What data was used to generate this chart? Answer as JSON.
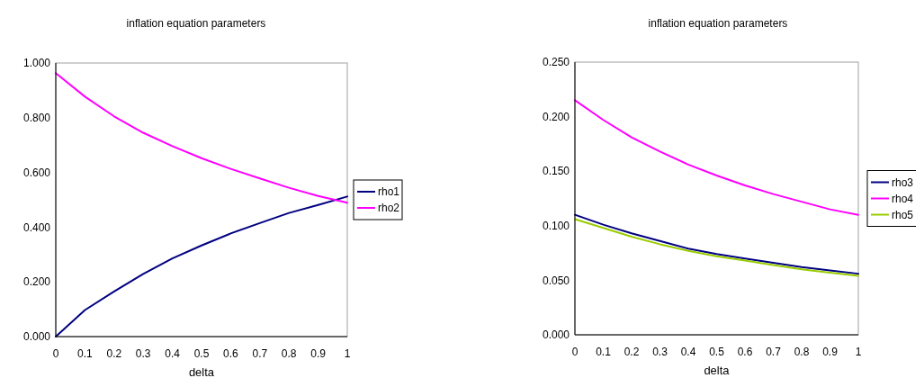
{
  "chart_data": [
    {
      "type": "line",
      "title": "inflation equation parameters",
      "xlabel": "delta",
      "x": [
        0,
        0.1,
        0.2,
        0.3,
        0.4,
        0.5,
        0.6,
        0.7,
        0.8,
        0.9,
        1
      ],
      "xlim": [
        0,
        1
      ],
      "xticks": [
        0,
        0.1,
        0.2,
        0.3,
        0.4,
        0.5,
        0.6,
        0.7,
        0.8,
        0.9,
        1
      ],
      "ylim": [
        0,
        1
      ],
      "yticks": [
        {
          "value": 0,
          "label": "0.000"
        },
        {
          "value": 0.2,
          "label": "0.200"
        },
        {
          "value": 0.4,
          "label": "0.400"
        },
        {
          "value": 0.6,
          "label": "0.600"
        },
        {
          "value": 0.8,
          "label": "0.800"
        },
        {
          "value": 1,
          "label": "1.000"
        }
      ],
      "grid": false,
      "legend": "right",
      "marker": "none",
      "series": [
        {
          "name": "rho1",
          "color": "#000080",
          "values": [
            0,
            0.097,
            0.165,
            0.229,
            0.286,
            0.333,
            0.377,
            0.415,
            0.452,
            0.481,
            0.512
          ]
        },
        {
          "name": "rho2",
          "color": "#ff00ff",
          "values": [
            0.963,
            0.877,
            0.805,
            0.745,
            0.696,
            0.652,
            0.613,
            0.578,
            0.544,
            0.514,
            0.489
          ]
        }
      ]
    },
    {
      "type": "line",
      "title": "inflation equation parameters",
      "xlabel": "delta",
      "x": [
        0,
        0.1,
        0.2,
        0.3,
        0.4,
        0.5,
        0.6,
        0.7,
        0.8,
        0.9,
        1
      ],
      "xlim": [
        0,
        1
      ],
      "xticks": [
        0,
        0.1,
        0.2,
        0.3,
        0.4,
        0.5,
        0.6,
        0.7,
        0.8,
        0.9,
        1
      ],
      "ylim": [
        0,
        0.25
      ],
      "yticks": [
        {
          "value": 0,
          "label": "0.000"
        },
        {
          "value": 0.05,
          "label": "0.050"
        },
        {
          "value": 0.1,
          "label": "0.100"
        },
        {
          "value": 0.15,
          "label": "0.150"
        },
        {
          "value": 0.2,
          "label": "0.200"
        },
        {
          "value": 0.25,
          "label": "0.250"
        }
      ],
      "grid": false,
      "legend": "right",
      "marker": "none",
      "series": [
        {
          "name": "rho3",
          "color": "#000080",
          "values": [
            0.11,
            0.101,
            0.093,
            0.086,
            0.079,
            0.074,
            0.07,
            0.066,
            0.062,
            0.059,
            0.056
          ]
        },
        {
          "name": "rho4",
          "color": "#ff00ff",
          "values": [
            0.215,
            0.197,
            0.181,
            0.168,
            0.156,
            0.146,
            0.137,
            0.129,
            0.122,
            0.115,
            0.11
          ]
        },
        {
          "name": "rho5",
          "color": "#99cc00",
          "values": [
            0.106,
            0.098,
            0.09,
            0.083,
            0.077,
            0.072,
            0.068,
            0.064,
            0.06,
            0.057,
            0.054
          ]
        }
      ]
    }
  ]
}
